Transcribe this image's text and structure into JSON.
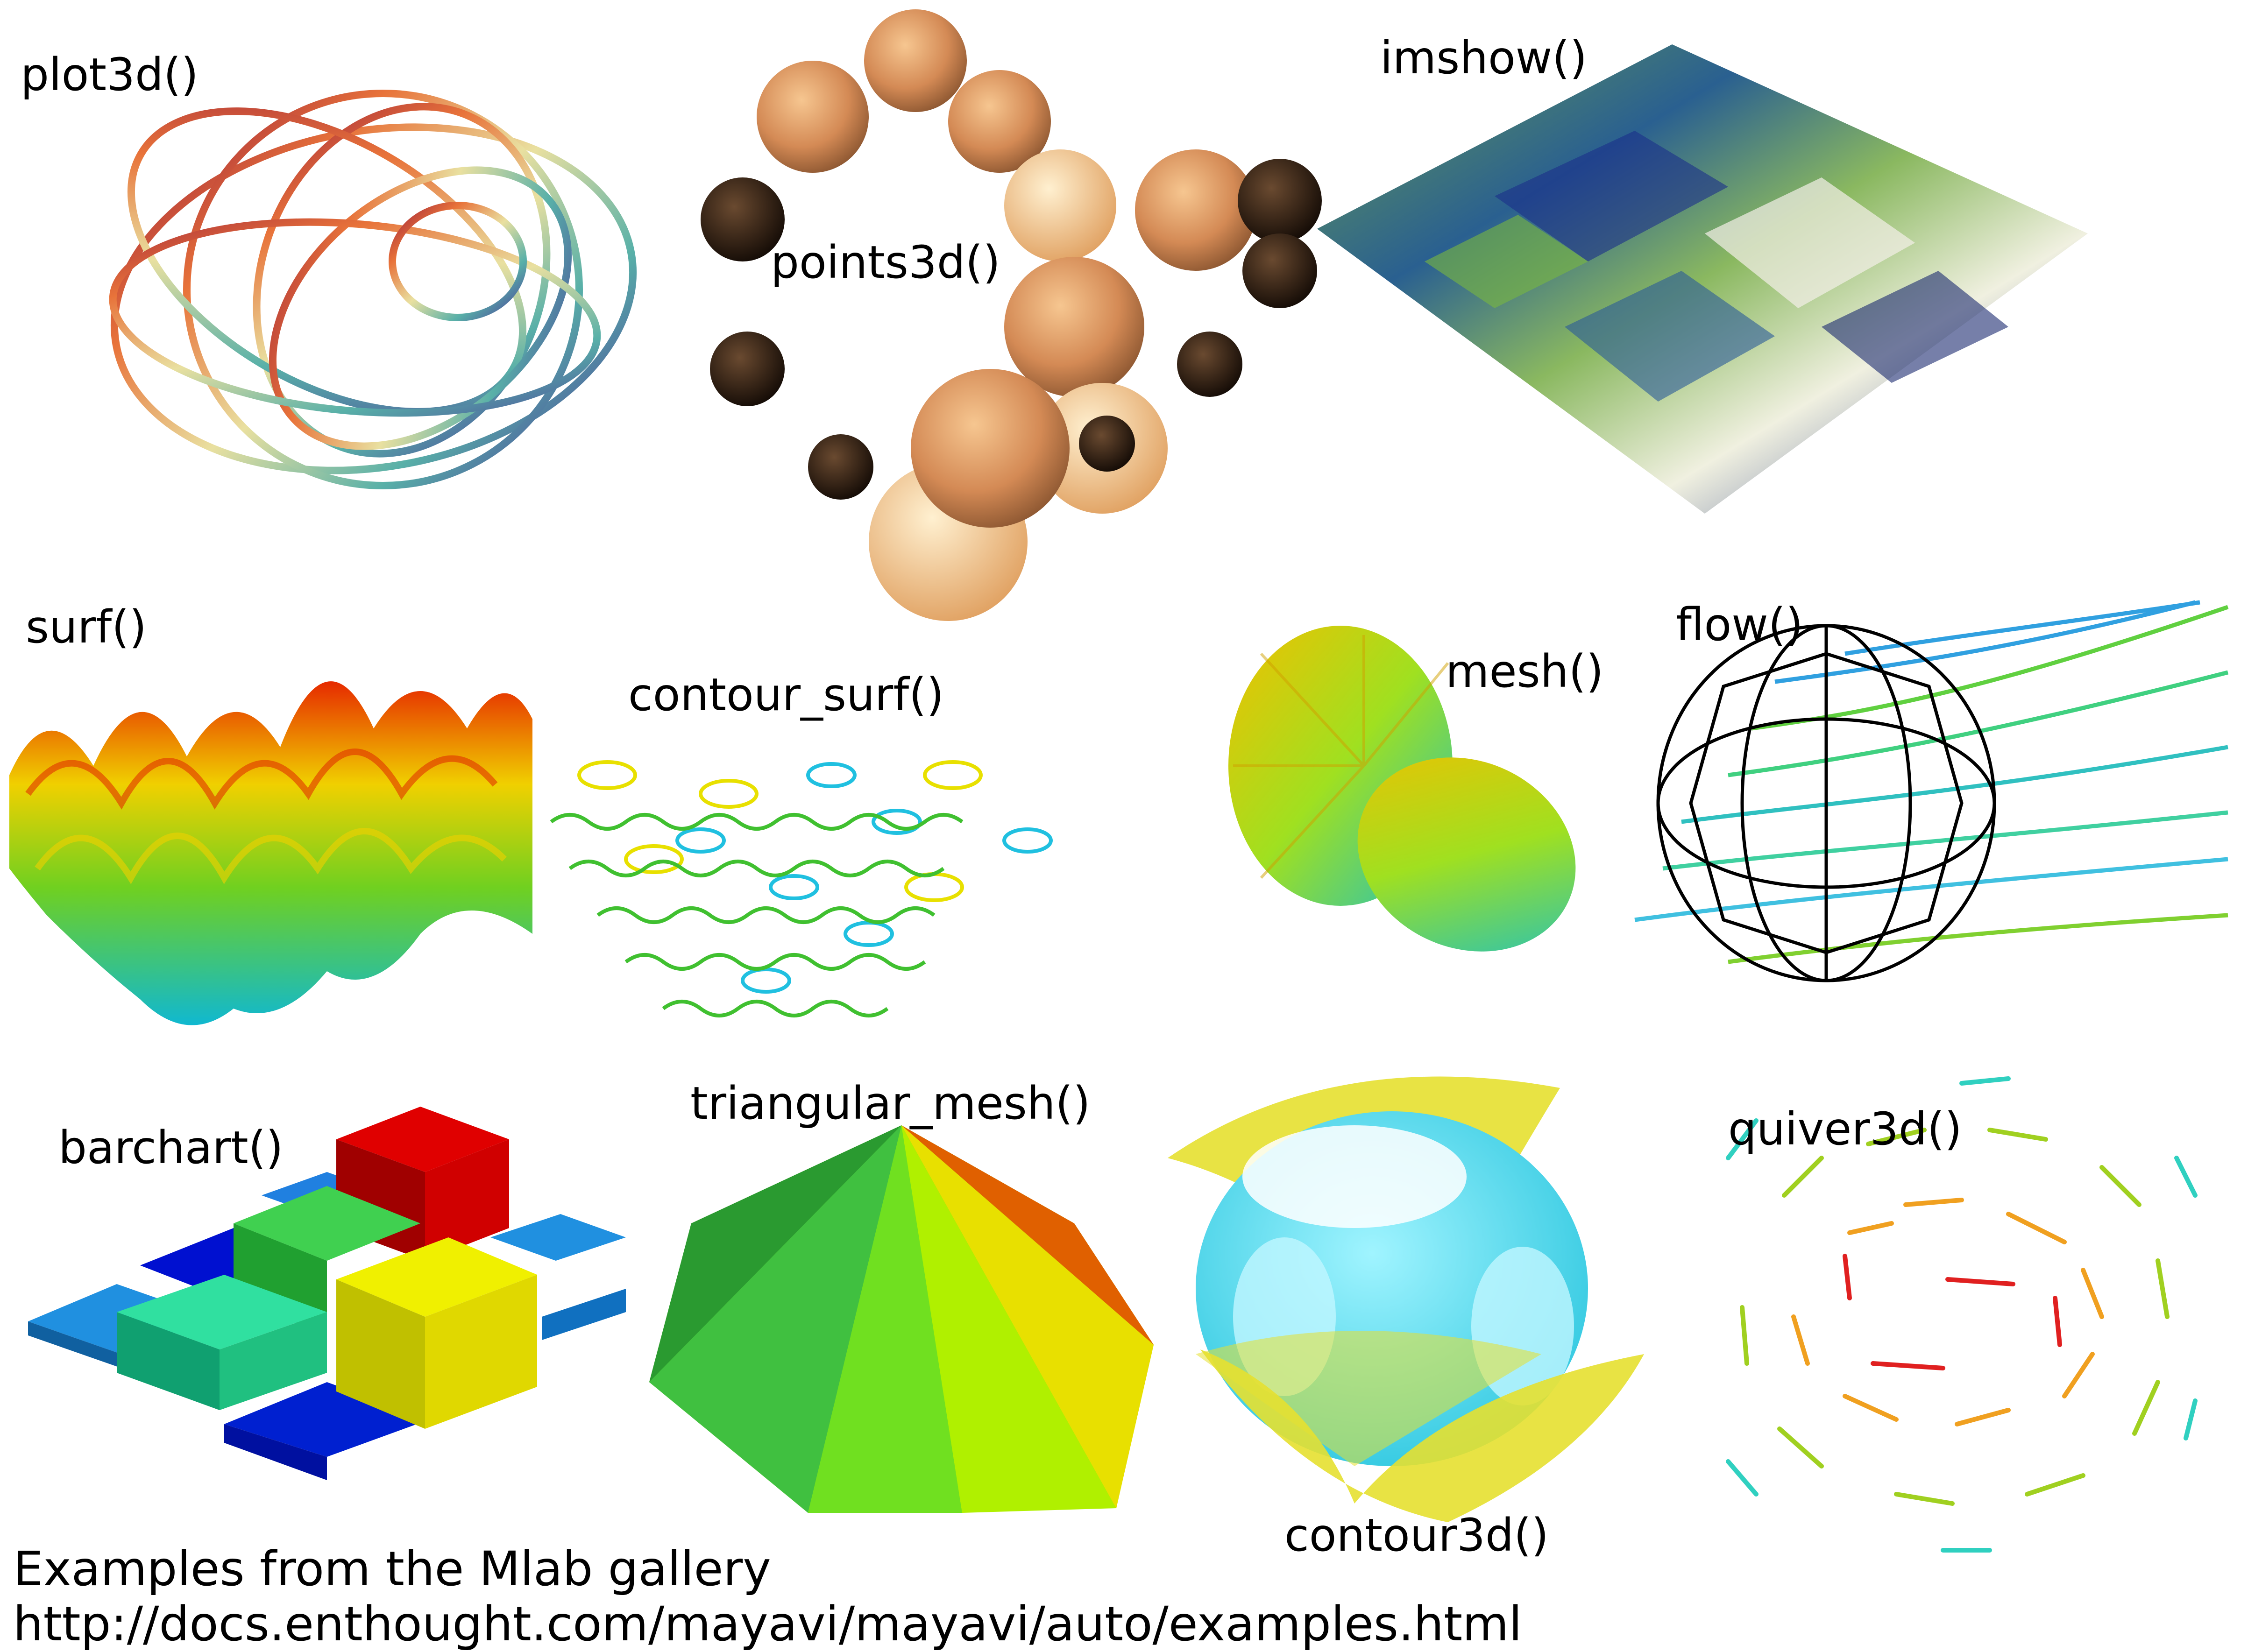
{
  "gallery": {
    "panels": [
      {
        "label": "plot3d()"
      },
      {
        "label": "points3d()"
      },
      {
        "label": "imshow()"
      },
      {
        "label": "surf()"
      },
      {
        "label": "contour_surf()"
      },
      {
        "label": "mesh()"
      },
      {
        "label": "flow()"
      },
      {
        "label": "barchart()"
      },
      {
        "label": "triangular_mesh()"
      },
      {
        "label": "contour3d()"
      },
      {
        "label": "quiver3d()"
      }
    ]
  },
  "footer": {
    "line1": "Examples from the Mlab gallery",
    "line2": "http://docs.enthought.com/mayavi/mayavi/auto/examples.html"
  },
  "colors": {
    "background": "#ffffff",
    "bar_red": "#e00000",
    "bar_yellow": "#e6e000",
    "contour_cyan": "#44e6f0",
    "contour_yellow": "#e8e83a",
    "points_tan": "#d9955e",
    "points_dark": "#2a1a10"
  }
}
